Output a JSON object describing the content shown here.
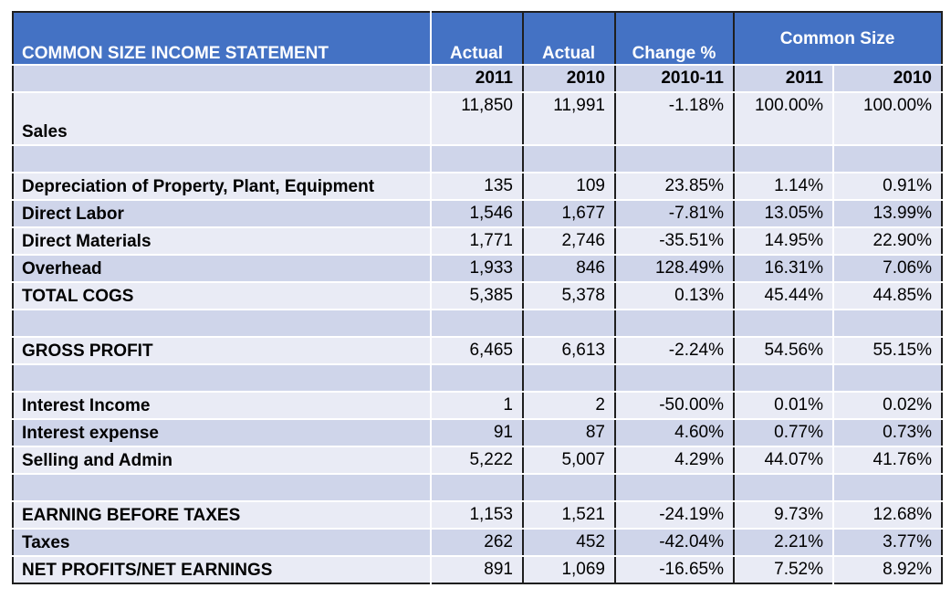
{
  "header": {
    "title": "COMMON SIZE INCOME STATEMENT",
    "col_actual_2011": "Actual",
    "col_actual_2010": "Actual",
    "col_change": "Change %",
    "col_common_size": "Common Size"
  },
  "subheader": {
    "c1": "2011",
    "c2": "2010",
    "c3": "2010-11",
    "c4": "2011",
    "c5": "2010"
  },
  "rows": [
    {
      "label": "Sales",
      "v2011": "11,850",
      "v2010": "11,991",
      "change": "-1.18%",
      "cs2011": "100.00%",
      "cs2010": "100.00%"
    },
    {
      "label": "",
      "v2011": "",
      "v2010": "",
      "change": "",
      "cs2011": "",
      "cs2010": ""
    },
    {
      "label": "Depreciation of Property, Plant, Equipment",
      "v2011": "135",
      "v2010": "109",
      "change": "23.85%",
      "cs2011": "1.14%",
      "cs2010": "0.91%"
    },
    {
      "label": "Direct Labor",
      "v2011": "1,546",
      "v2010": "1,677",
      "change": "-7.81%",
      "cs2011": "13.05%",
      "cs2010": "13.99%"
    },
    {
      "label": "Direct Materials",
      "v2011": "1,771",
      "v2010": "2,746",
      "change": "-35.51%",
      "cs2011": "14.95%",
      "cs2010": "22.90%"
    },
    {
      "label": "Overhead",
      "v2011": "1,933",
      "v2010": "846",
      "change": "128.49%",
      "cs2011": "16.31%",
      "cs2010": "7.06%"
    },
    {
      "label": "TOTAL COGS",
      "v2011": "5,385",
      "v2010": "5,378",
      "change": "0.13%",
      "cs2011": "45.44%",
      "cs2010": "44.85%"
    },
    {
      "label": "",
      "v2011": "",
      "v2010": "",
      "change": "",
      "cs2011": "",
      "cs2010": ""
    },
    {
      "label": "GROSS PROFIT",
      "v2011": "6,465",
      "v2010": "6,613",
      "change": "-2.24%",
      "cs2011": "54.56%",
      "cs2010": "55.15%"
    },
    {
      "label": "",
      "v2011": "",
      "v2010": "",
      "change": "",
      "cs2011": "",
      "cs2010": ""
    },
    {
      "label": "Interest Income",
      "v2011": "1",
      "v2010": "2",
      "change": "-50.00%",
      "cs2011": "0.01%",
      "cs2010": "0.02%"
    },
    {
      "label": "Interest expense",
      "v2011": "91",
      "v2010": "87",
      "change": "4.60%",
      "cs2011": "0.77%",
      "cs2010": "0.73%"
    },
    {
      "label": "Selling and Admin",
      "v2011": "5,222",
      "v2010": "5,007",
      "change": "4.29%",
      "cs2011": "44.07%",
      "cs2010": "41.76%"
    },
    {
      "label": "",
      "v2011": "",
      "v2010": "",
      "change": "",
      "cs2011": "",
      "cs2010": ""
    },
    {
      "label": "EARNING BEFORE TAXES",
      "v2011": "1,153",
      "v2010": "1,521",
      "change": "-24.19%",
      "cs2011": "9.73%",
      "cs2010": "12.68%"
    },
    {
      "label": "Taxes",
      "v2011": "262",
      "v2010": "452",
      "change": "-42.04%",
      "cs2011": "2.21%",
      "cs2010": "3.77%"
    },
    {
      "label": "NET PROFITS/NET EARNINGS",
      "v2011": "891",
      "v2010": "1,069",
      "change": "-16.65%",
      "cs2011": "7.52%",
      "cs2010": "8.92%"
    }
  ],
  "colors": {
    "header_blue": "#4472c4",
    "band_dark": "#cfd5ea",
    "band_light": "#e9ebf5"
  }
}
